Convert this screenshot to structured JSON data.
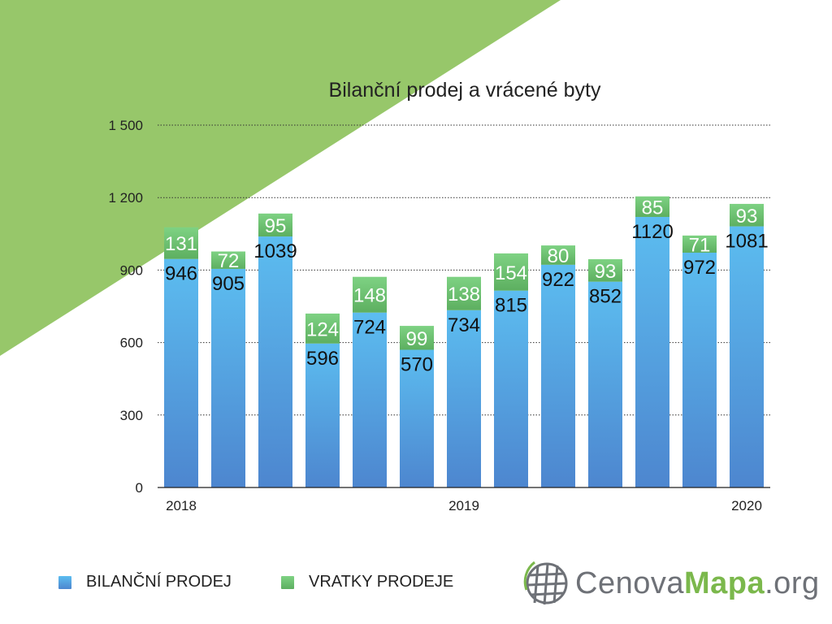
{
  "chart_data": {
    "type": "bar",
    "stacked": true,
    "title": "Bilanční prodej a vrácené byty",
    "x_tick_labels": [
      {
        "index": 0,
        "label": "2018"
      },
      {
        "index": 6,
        "label": "2019"
      },
      {
        "index": 12,
        "label": "2020"
      }
    ],
    "ylim": [
      0,
      1500
    ],
    "y_ticks": [
      {
        "value": 0,
        "label": "0"
      },
      {
        "value": 300,
        "label": "300"
      },
      {
        "value": 600,
        "label": "600"
      },
      {
        "value": 900,
        "label": "900"
      },
      {
        "value": 1200,
        "label": "1 200"
      },
      {
        "value": 1500,
        "label": "1 500"
      }
    ],
    "grid": true,
    "legend_position": "bottom-left",
    "series": [
      {
        "name": "BILANČNÍ PRODEJ",
        "color_top": "#5cbdf0",
        "color_bottom": "#4d86cf",
        "values": [
          946,
          905,
          1039,
          596,
          724,
          570,
          734,
          815,
          922,
          852,
          1120,
          972,
          1081
        ]
      },
      {
        "name": "VRATKY PRODEJE",
        "color_top": "#7ed283",
        "color_bottom": "#5daf60",
        "values": [
          131,
          72,
          95,
          124,
          148,
          99,
          138,
          154,
          80,
          93,
          85,
          71,
          93
        ]
      }
    ]
  },
  "background": {
    "accent": "#97c76a"
  },
  "logo": {
    "icon": "globe-grid-icon",
    "text_part1": "Cenova",
    "text_part2": "Mapa",
    "text_part3": ".org"
  }
}
